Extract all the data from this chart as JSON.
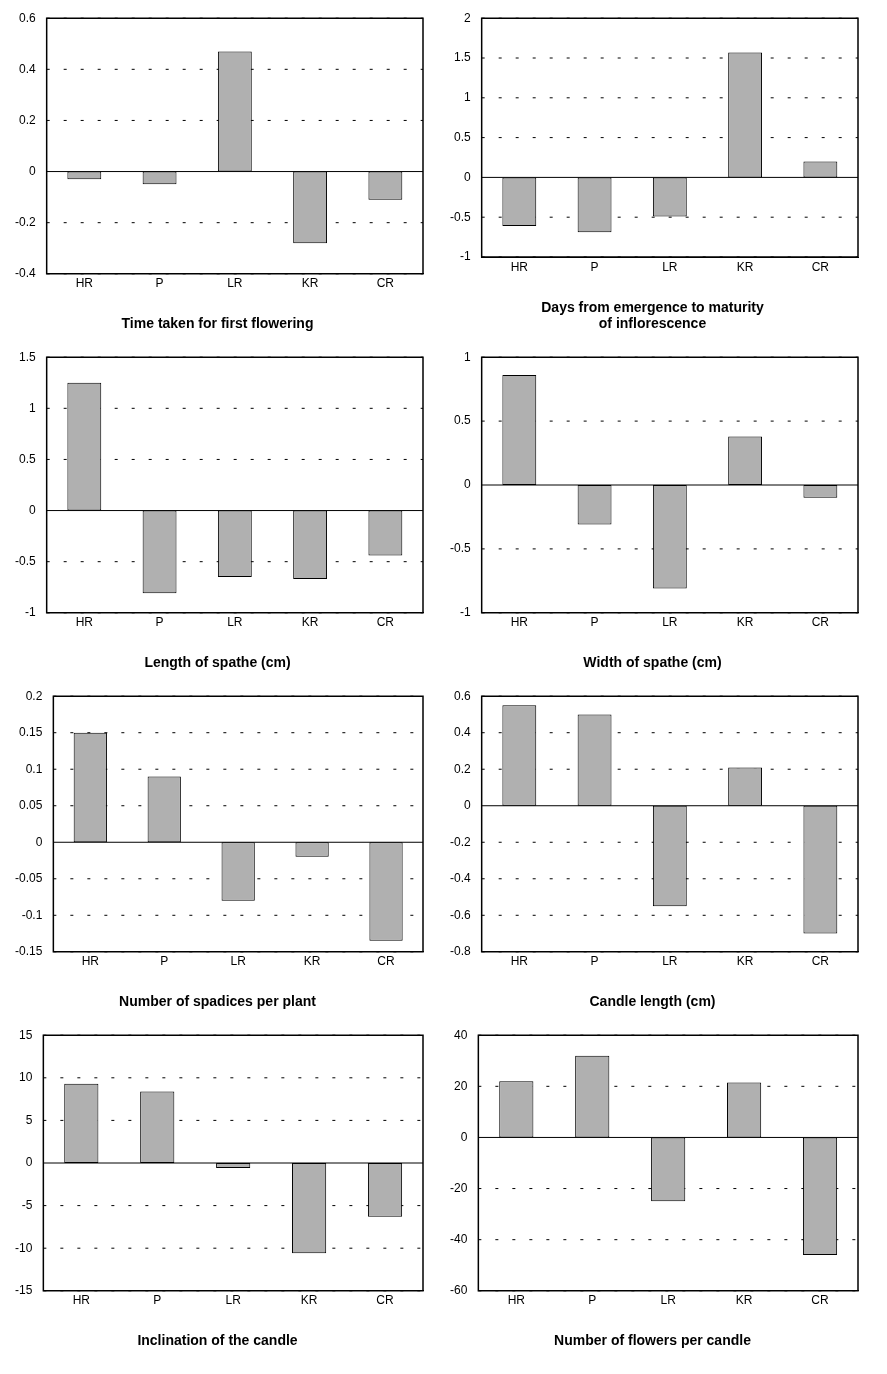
{
  "chart_data": [
    {
      "type": "bar",
      "title": "Time taken for first flowering",
      "categories": [
        "HR",
        "P",
        "LR",
        "KR",
        "CR"
      ],
      "series": [
        {
          "color": "#b0b0b0",
          "values": [
            -0.03,
            -0.05,
            0.47,
            -0.28,
            -0.11
          ]
        }
      ],
      "ylim": [
        -0.4,
        0.6
      ],
      "yticks": [
        -0.4,
        -0.2,
        0,
        0.2,
        0.4,
        0.6
      ],
      "grid": "y",
      "legend": false
    },
    {
      "type": "bar",
      "title": "Days from emergence to maturity of inflorescence",
      "categories": [
        "HR",
        "P",
        "LR",
        "KR",
        "CR"
      ],
      "series": [
        {
          "color": "#b0b0b0",
          "values": [
            -0.61,
            -0.69,
            -0.49,
            1.57,
            0.2
          ]
        }
      ],
      "ylim": [
        -1,
        2
      ],
      "yticks": [
        -1,
        -0.5,
        0,
        0.5,
        1,
        1.5,
        2
      ],
      "grid": "y",
      "legend": false
    },
    {
      "type": "bar",
      "title": "Length of spathe (cm)",
      "categories": [
        "HR",
        "P",
        "LR",
        "KR",
        "CR"
      ],
      "series": [
        {
          "color": "#b0b0b0",
          "values": [
            1.25,
            -0.81,
            -0.65,
            -0.67,
            -0.44
          ]
        }
      ],
      "ylim": [
        -1,
        1.5
      ],
      "yticks": [
        -1,
        -0.5,
        0,
        0.5,
        1,
        1.5
      ],
      "grid": "y",
      "legend": false
    },
    {
      "type": "bar",
      "title": "Width of spathe (cm)",
      "categories": [
        "HR",
        "P",
        "LR",
        "KR",
        "CR"
      ],
      "series": [
        {
          "color": "#b0b0b0",
          "values": [
            0.86,
            -0.31,
            -0.81,
            0.38,
            -0.1
          ]
        }
      ],
      "ylim": [
        -1,
        1
      ],
      "yticks": [
        -1,
        -0.5,
        0,
        0.5,
        1
      ],
      "grid": "y",
      "legend": false
    },
    {
      "type": "bar",
      "title": "Number of spadices per plant",
      "categories": [
        "HR",
        "P",
        "LR",
        "KR",
        "CR"
      ],
      "series": [
        {
          "color": "#b0b0b0",
          "values": [
            0.15,
            0.09,
            -0.08,
            -0.02,
            -0.135
          ]
        }
      ],
      "ylim": [
        -0.15,
        0.2
      ],
      "yticks": [
        -0.15,
        -0.1,
        -0.05,
        0,
        0.05,
        0.1,
        0.15,
        0.2
      ],
      "grid": "y",
      "legend": false
    },
    {
      "type": "bar",
      "title": "Candle length (cm)",
      "categories": [
        "HR",
        "P",
        "LR",
        "KR",
        "CR"
      ],
      "series": [
        {
          "color": "#b0b0b0",
          "values": [
            0.55,
            0.5,
            -0.55,
            0.21,
            -0.7
          ]
        }
      ],
      "ylim": [
        -0.8,
        0.6
      ],
      "yticks": [
        -0.8,
        -0.6,
        -0.4,
        -0.2,
        0,
        0.2,
        0.4,
        0.6
      ],
      "grid": "y",
      "legend": false
    },
    {
      "type": "bar",
      "title": "Inclination of the candle",
      "categories": [
        "HR",
        "P",
        "LR",
        "KR",
        "CR"
      ],
      "series": [
        {
          "color": "#b0b0b0",
          "values": [
            9.3,
            8.4,
            -0.6,
            -10.6,
            -6.3
          ]
        }
      ],
      "ylim": [
        -15,
        15
      ],
      "yticks": [
        -15,
        -10,
        -5,
        0,
        5,
        10,
        15
      ],
      "grid": "y",
      "legend": false
    },
    {
      "type": "bar",
      "title": "Number of flowers per candle",
      "categories": [
        "HR",
        "P",
        "LR",
        "KR",
        "CR"
      ],
      "series": [
        {
          "color": "#b0b0b0",
          "values": [
            22,
            32,
            -25,
            21.5,
            -46
          ]
        }
      ],
      "ylim": [
        -60,
        40
      ],
      "yticks": [
        -60,
        -40,
        -20,
        0,
        20,
        40
      ],
      "grid": "y",
      "legend": false
    }
  ]
}
